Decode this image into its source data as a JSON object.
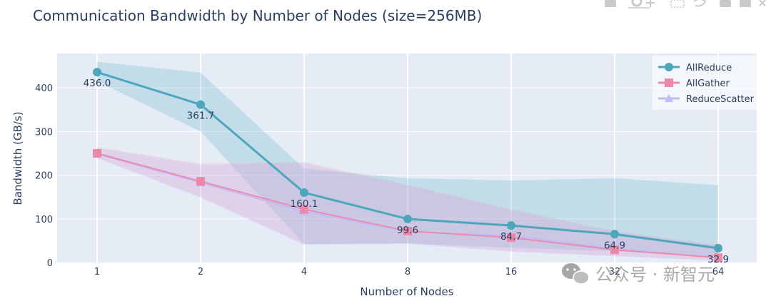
{
  "chart_data": {
    "type": "line",
    "title": "Communication Bandwidth by Number of Nodes (size=256MB)",
    "xlabel": "Number of Nodes",
    "ylabel": "Bandwidth (GB/s)",
    "x_scale": "log2",
    "categories": [
      "1",
      "2",
      "4",
      "8",
      "16",
      "32",
      "64"
    ],
    "x": [
      1,
      2,
      4,
      8,
      16,
      32,
      64
    ],
    "ylim": [
      0,
      480
    ],
    "yticks": [
      0,
      100,
      200,
      300,
      400
    ],
    "grid": true,
    "legend_position": "top-right",
    "series": [
      {
        "name": "AllReduce",
        "color": "#4ea6bd",
        "marker": "circle",
        "values": [
          436.0,
          361.7,
          160.1,
          99.6,
          84.7,
          64.9,
          32.9
        ],
        "labels": [
          "436.0",
          "361.7",
          "160.1",
          "99.6",
          "84.7",
          "64.9",
          "32.9"
        ],
        "band_upper": [
          460,
          435,
          215,
          193,
          188,
          193,
          177
        ],
        "band_lower": [
          415,
          300,
          42,
          44,
          34,
          26,
          13
        ]
      },
      {
        "name": "AllGather",
        "color": "#ec89ab",
        "marker": "square",
        "values": [
          250,
          186,
          122,
          72,
          57,
          29,
          11
        ],
        "band_upper": [
          264,
          226,
          230,
          178,
          122,
          72,
          40
        ],
        "band_lower": [
          240,
          150,
          42,
          44,
          26,
          15,
          5
        ]
      },
      {
        "name": "ReduceScatter",
        "color": "#c4b7fa",
        "marker": "triangle-up",
        "values": [
          249,
          183,
          117,
          71,
          61,
          32,
          11
        ],
        "band_upper": [
          262,
          222,
          226,
          176,
          118,
          70,
          38
        ],
        "band_lower": [
          238,
          148,
          40,
          42,
          24,
          14,
          4
        ]
      }
    ]
  },
  "watermark": {
    "text": "公众号 · 新智元",
    "icon": "wechat-icon"
  },
  "modebar": {
    "icons": [
      "camera-icon",
      "zoom-icon",
      "pan-icon",
      "box-select-icon",
      "lasso-icon",
      "zoom-in-icon",
      "zoom-out-icon",
      "autoscale-icon"
    ]
  }
}
